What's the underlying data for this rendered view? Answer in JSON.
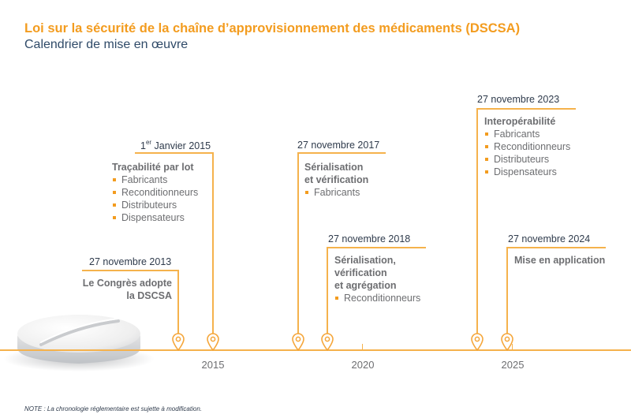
{
  "header": {
    "title": "Loi sur la sécurité de la chaîne d’approvisionnement des médicaments (DSCSA)",
    "subtitle": "Calendrier de mise en œuvre"
  },
  "axis": {
    "years": [
      "2015",
      "2020",
      "2025"
    ]
  },
  "milestones": [
    {
      "date": "27 novembre 2013",
      "event": "Le Congrès adopte la DSCSA",
      "items": []
    },
    {
      "date_prefix": "1",
      "date_sup": "er",
      "date_rest": " Janvier 2015",
      "event": "Traçabilité par lot",
      "items": [
        "Fabricants",
        "Reconditionneurs",
        "Distributeurs",
        "Dispensateurs"
      ]
    },
    {
      "date": "27 novembre 2017",
      "event_line1": "Sérialisation",
      "event_line2": "et vérification",
      "items": [
        "Fabricants"
      ]
    },
    {
      "date": "27 novembre 2018",
      "event_line1": "Sérialisation,",
      "event_line2": "vérification",
      "event_line3": "et agrégation",
      "items": [
        "Reconditionneurs"
      ]
    },
    {
      "date": "27 novembre 2023",
      "event": "Interopérabilité",
      "items": [
        "Fabricants",
        "Reconditionneurs",
        "Distributeurs",
        "Dispensateurs"
      ]
    },
    {
      "date": "27 novembre 2024",
      "event": "Mise en application",
      "items": []
    }
  ],
  "footnote": "NOTE : La chronologie réglementaire est sujette à modification.",
  "colors": {
    "accent": "#f39c1f",
    "line": "#f5b24c",
    "subtitle": "#2f4a68",
    "text": "#6d6e71"
  }
}
